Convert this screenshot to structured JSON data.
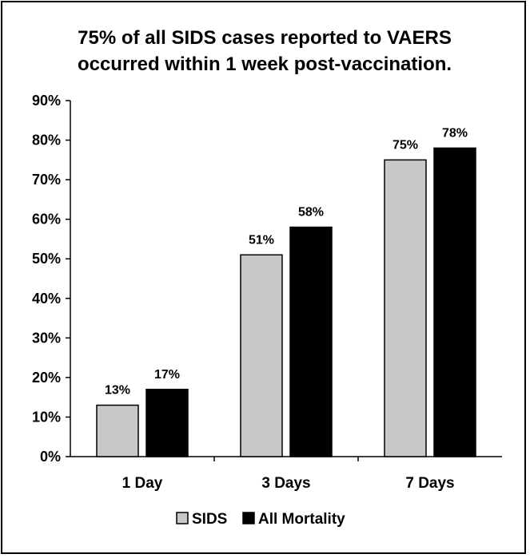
{
  "chart_data": {
    "type": "bar",
    "title_lines": [
      "75% of all SIDS cases reported to VAERS",
      "occurred within 1 week post-vaccination."
    ],
    "categories": [
      "1 Day",
      "3 Days",
      "7 Days"
    ],
    "series": [
      {
        "name": "SIDS",
        "values": [
          13,
          51,
          75
        ],
        "labels": [
          "13%",
          "51%",
          "75%"
        ],
        "color": "#c8c8c8"
      },
      {
        "name": "All Mortality",
        "values": [
          17,
          58,
          78
        ],
        "labels": [
          "17%",
          "58%",
          "78%"
        ],
        "color": "#000000"
      }
    ],
    "yticks": [
      "0%",
      "10%",
      "20%",
      "30%",
      "40%",
      "50%",
      "60%",
      "70%",
      "80%",
      "90%"
    ],
    "ylim": [
      0,
      90
    ],
    "grid": false,
    "legend_position": "bottom"
  }
}
